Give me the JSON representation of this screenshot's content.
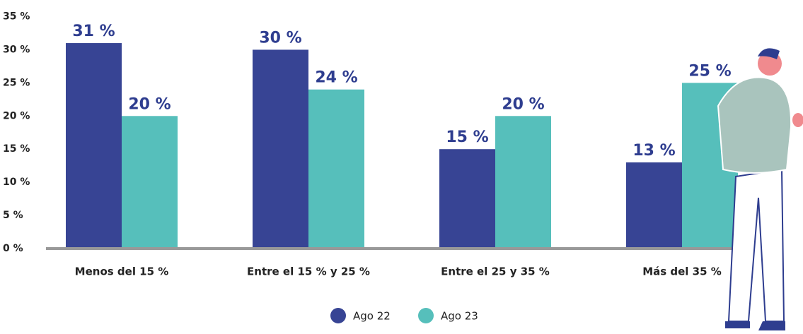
{
  "chart_data": {
    "type": "bar",
    "categories": [
      "Menos del 15 %",
      "Entre el 15 % y 25 %",
      "Entre el 25 y 35 %",
      "Más del 35 %"
    ],
    "series": [
      {
        "name": "Ago 22",
        "color": "#374494",
        "values": [
          31,
          30,
          15,
          13
        ],
        "value_labels": [
          "31 %",
          "30 %",
          "15 %",
          "13 %"
        ]
      },
      {
        "name": "Ago 23",
        "color": "#56bfbb",
        "values": [
          20,
          24,
          20,
          25
        ],
        "value_labels": [
          "20 %",
          "24 %",
          "20 %",
          "25 %"
        ]
      }
    ],
    "ylim": [
      0,
      35
    ],
    "yticks": [
      {
        "value": 0,
        "label": "0 %"
      },
      {
        "value": 5,
        "label": "5 %"
      },
      {
        "value": 10,
        "label": "10 %"
      },
      {
        "value": 15,
        "label": "15 %"
      },
      {
        "value": 20,
        "label": "20 %"
      },
      {
        "value": 25,
        "label": "25 %"
      },
      {
        "value": 30,
        "label": "30 %"
      },
      {
        "value": 35,
        "label": "35 %"
      }
    ],
    "legend": "bottom"
  }
}
